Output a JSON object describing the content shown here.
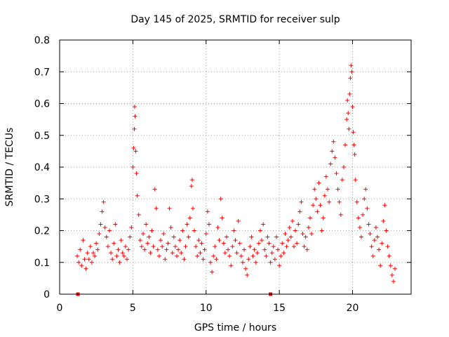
{
  "chart_data": {
    "type": "scatter",
    "title": "Day 145 of 2025, SRMTID for receiver sulp",
    "xlabel": "GPS time / hours",
    "ylabel": "SRMTID / TECUs",
    "xlim": [
      0,
      24
    ],
    "ylim": [
      0,
      0.8
    ],
    "grid": true,
    "x_ticks": [
      0,
      5,
      10,
      15,
      20
    ],
    "x_tick_labels": [
      "0",
      "5",
      "10",
      "15",
      "20"
    ],
    "y_ticks": [
      0,
      0.1,
      0.2,
      0.3,
      0.4,
      0.5,
      0.6,
      0.7,
      0.8
    ],
    "y_tick_labels": [
      "0",
      "0.1",
      "0.2",
      "0.3",
      "0.4",
      "0.5",
      "0.6",
      "0.7",
      "0.8"
    ],
    "marker": "+",
    "color": "#ff0000",
    "baseline_markers_x": [
      1.25,
      14.4
    ],
    "series": [
      {
        "name": "SRMTID",
        "points": [
          [
            1.2,
            0.12
          ],
          [
            1.3,
            0.1
          ],
          [
            1.4,
            0.14
          ],
          [
            1.5,
            0.09
          ],
          [
            1.6,
            0.17
          ],
          [
            1.7,
            0.11
          ],
          [
            1.8,
            0.08
          ],
          [
            1.9,
            0.13
          ],
          [
            2.0,
            0.11
          ],
          [
            2.1,
            0.15
          ],
          [
            2.2,
            0.1
          ],
          [
            2.3,
            0.13
          ],
          [
            2.4,
            0.12
          ],
          [
            2.5,
            0.16
          ],
          [
            2.6,
            0.14
          ],
          [
            2.7,
            0.19
          ],
          [
            2.8,
            0.22
          ],
          [
            2.9,
            0.26
          ],
          [
            3.0,
            0.29
          ],
          [
            3.1,
            0.21
          ],
          [
            3.2,
            0.18
          ],
          [
            3.3,
            0.15
          ],
          [
            3.4,
            0.2
          ],
          [
            3.5,
            0.13
          ],
          [
            3.6,
            0.11
          ],
          [
            3.7,
            0.16
          ],
          [
            3.8,
            0.22
          ],
          [
            3.9,
            0.12
          ],
          [
            4.0,
            0.14
          ],
          [
            4.1,
            0.1
          ],
          [
            4.2,
            0.17
          ],
          [
            4.3,
            0.13
          ],
          [
            4.4,
            0.12
          ],
          [
            4.5,
            0.15
          ],
          [
            4.6,
            0.11
          ],
          [
            4.7,
            0.14
          ],
          [
            4.8,
            0.18
          ],
          [
            4.9,
            0.21
          ],
          [
            5.0,
            0.4
          ],
          [
            5.05,
            0.46
          ],
          [
            5.1,
            0.52
          ],
          [
            5.12,
            0.59
          ],
          [
            5.15,
            0.56
          ],
          [
            5.2,
            0.45
          ],
          [
            5.25,
            0.38
          ],
          [
            5.3,
            0.31
          ],
          [
            5.4,
            0.25
          ],
          [
            5.5,
            0.17
          ],
          [
            5.6,
            0.15
          ],
          [
            5.7,
            0.19
          ],
          [
            5.8,
            0.14
          ],
          [
            5.9,
            0.22
          ],
          [
            6.0,
            0.16
          ],
          [
            6.1,
            0.18
          ],
          [
            6.2,
            0.13
          ],
          [
            6.3,
            0.2
          ],
          [
            6.4,
            0.15
          ],
          [
            6.5,
            0.33
          ],
          [
            6.6,
            0.27
          ],
          [
            6.7,
            0.14
          ],
          [
            6.8,
            0.12
          ],
          [
            6.9,
            0.17
          ],
          [
            7.0,
            0.15
          ],
          [
            7.1,
            0.19
          ],
          [
            7.2,
            0.11
          ],
          [
            7.3,
            0.14
          ],
          [
            7.4,
            0.16
          ],
          [
            7.5,
            0.27
          ],
          [
            7.6,
            0.21
          ],
          [
            7.7,
            0.13
          ],
          [
            7.8,
            0.18
          ],
          [
            7.9,
            0.15
          ],
          [
            8.0,
            0.12
          ],
          [
            8.1,
            0.14
          ],
          [
            8.2,
            0.17
          ],
          [
            8.3,
            0.13
          ],
          [
            8.4,
            0.2
          ],
          [
            8.5,
            0.11
          ],
          [
            8.6,
            0.15
          ],
          [
            8.7,
            0.22
          ],
          [
            8.8,
            0.18
          ],
          [
            8.9,
            0.24
          ],
          [
            9.0,
            0.34
          ],
          [
            9.05,
            0.36
          ],
          [
            9.1,
            0.27
          ],
          [
            9.2,
            0.2
          ],
          [
            9.3,
            0.15
          ],
          [
            9.4,
            0.12
          ],
          [
            9.5,
            0.17
          ],
          [
            9.6,
            0.13
          ],
          [
            9.7,
            0.16
          ],
          [
            9.8,
            0.11
          ],
          [
            9.9,
            0.14
          ],
          [
            10.0,
            0.19
          ],
          [
            10.1,
            0.26
          ],
          [
            10.2,
            0.22
          ],
          [
            10.3,
            0.1
          ],
          [
            10.4,
            0.07
          ],
          [
            10.5,
            0.12
          ],
          [
            10.6,
            0.15
          ],
          [
            10.7,
            0.11
          ],
          [
            10.8,
            0.21
          ],
          [
            10.9,
            0.17
          ],
          [
            11.0,
            0.3
          ],
          [
            11.1,
            0.24
          ],
          [
            11.2,
            0.16
          ],
          [
            11.3,
            0.13
          ],
          [
            11.4,
            0.18
          ],
          [
            11.5,
            0.14
          ],
          [
            11.6,
            0.12
          ],
          [
            11.7,
            0.09
          ],
          [
            11.8,
            0.15
          ],
          [
            11.9,
            0.2
          ],
          [
            12.0,
            0.17
          ],
          [
            12.1,
            0.13
          ],
          [
            12.2,
            0.23
          ],
          [
            12.3,
            0.16
          ],
          [
            12.4,
            0.12
          ],
          [
            12.5,
            0.1
          ],
          [
            12.6,
            0.14
          ],
          [
            12.7,
            0.08
          ],
          [
            12.8,
            0.06
          ],
          [
            12.9,
            0.11
          ],
          [
            13.0,
            0.15
          ],
          [
            13.1,
            0.18
          ],
          [
            13.2,
            0.12
          ],
          [
            13.3,
            0.14
          ],
          [
            13.4,
            0.1
          ],
          [
            13.5,
            0.13
          ],
          [
            13.6,
            0.16
          ],
          [
            13.7,
            0.2
          ],
          [
            13.8,
            0.17
          ],
          [
            13.9,
            0.22
          ],
          [
            14.0,
            0.14
          ],
          [
            14.1,
            0.12
          ],
          [
            14.2,
            0.18
          ],
          [
            14.3,
            0.16
          ],
          [
            14.4,
            0.1
          ],
          [
            14.5,
            0.13
          ],
          [
            14.6,
            0.15
          ],
          [
            14.7,
            0.11
          ],
          [
            14.8,
            0.18
          ],
          [
            14.9,
            0.14
          ],
          [
            15.0,
            0.09
          ],
          [
            15.1,
            0.12
          ],
          [
            15.2,
            0.16
          ],
          [
            15.3,
            0.13
          ],
          [
            15.4,
            0.19
          ],
          [
            15.5,
            0.15
          ],
          [
            15.6,
            0.17
          ],
          [
            15.7,
            0.21
          ],
          [
            15.8,
            0.18
          ],
          [
            15.9,
            0.23
          ],
          [
            16.0,
            0.15
          ],
          [
            16.1,
            0.2
          ],
          [
            16.2,
            0.16
          ],
          [
            16.3,
            0.22
          ],
          [
            16.4,
            0.26
          ],
          [
            16.5,
            0.29
          ],
          [
            16.6,
            0.19
          ],
          [
            16.7,
            0.15
          ],
          [
            16.8,
            0.18
          ],
          [
            16.9,
            0.14
          ],
          [
            17.0,
            0.21
          ],
          [
            17.1,
            0.24
          ],
          [
            17.2,
            0.19
          ],
          [
            17.3,
            0.28
          ],
          [
            17.4,
            0.33
          ],
          [
            17.5,
            0.3
          ],
          [
            17.6,
            0.26
          ],
          [
            17.7,
            0.35
          ],
          [
            17.8,
            0.28
          ],
          [
            17.9,
            0.2
          ],
          [
            18.0,
            0.24
          ],
          [
            18.1,
            0.31
          ],
          [
            18.2,
            0.37
          ],
          [
            18.3,
            0.33
          ],
          [
            18.4,
            0.29
          ],
          [
            18.5,
            0.41
          ],
          [
            18.6,
            0.45
          ],
          [
            18.7,
            0.48
          ],
          [
            18.8,
            0.43
          ],
          [
            18.9,
            0.38
          ],
          [
            19.0,
            0.33
          ],
          [
            19.1,
            0.29
          ],
          [
            19.2,
            0.25
          ],
          [
            19.3,
            0.36
          ],
          [
            19.4,
            0.4
          ],
          [
            19.5,
            0.47
          ],
          [
            19.6,
            0.55
          ],
          [
            19.65,
            0.61
          ],
          [
            19.7,
            0.57
          ],
          [
            19.75,
            0.52
          ],
          [
            19.8,
            0.63
          ],
          [
            19.85,
            0.68
          ],
          [
            19.9,
            0.72
          ],
          [
            19.95,
            0.7
          ],
          [
            20.0,
            0.59
          ],
          [
            20.05,
            0.51
          ],
          [
            20.1,
            0.47
          ],
          [
            20.15,
            0.44
          ],
          [
            20.2,
            0.36
          ],
          [
            20.3,
            0.29
          ],
          [
            20.4,
            0.24
          ],
          [
            20.5,
            0.21
          ],
          [
            20.6,
            0.18
          ],
          [
            20.7,
            0.25
          ],
          [
            20.8,
            0.3
          ],
          [
            20.9,
            0.33
          ],
          [
            21.0,
            0.27
          ],
          [
            21.1,
            0.22
          ],
          [
            21.2,
            0.19
          ],
          [
            21.3,
            0.15
          ],
          [
            21.4,
            0.12
          ],
          [
            21.5,
            0.17
          ],
          [
            21.6,
            0.21
          ],
          [
            21.7,
            0.18
          ],
          [
            21.8,
            0.14
          ],
          [
            21.9,
            0.09
          ],
          [
            22.0,
            0.16
          ],
          [
            22.1,
            0.23
          ],
          [
            22.2,
            0.28
          ],
          [
            22.3,
            0.2
          ],
          [
            22.4,
            0.15
          ],
          [
            22.5,
            0.12
          ],
          [
            22.6,
            0.09
          ],
          [
            22.7,
            0.06
          ],
          [
            22.8,
            0.04
          ],
          [
            22.9,
            0.08
          ]
        ]
      }
    ]
  }
}
